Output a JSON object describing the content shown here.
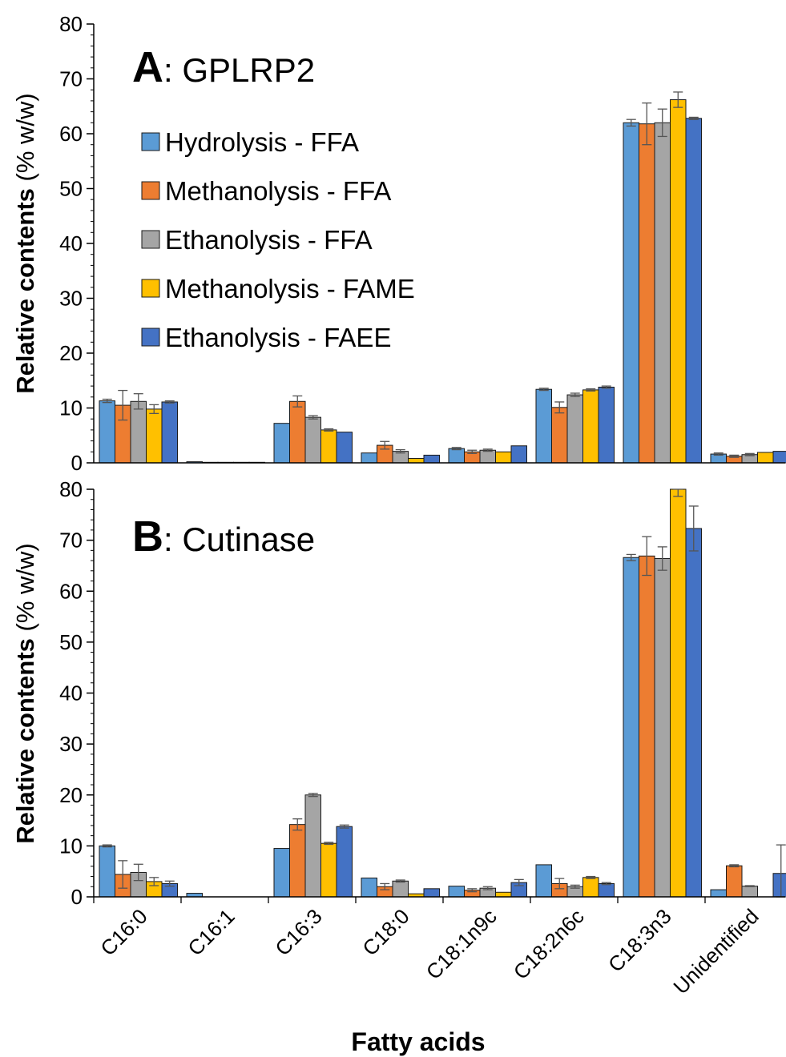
{
  "chart_data": {
    "type": "bar",
    "x_title": "Fatty acids",
    "y_title_bold": "Relative contents",
    "y_title_rest": "(% w/w)",
    "categories": [
      "C16:0",
      "C16:1",
      "C16:3",
      "C18:0",
      "C18:1n9c",
      "C18:2n6c",
      "C18:3n3",
      "Unidentified"
    ],
    "ylim": [
      0,
      80
    ],
    "yticks": [
      0,
      10,
      20,
      30,
      40,
      50,
      60,
      70,
      80
    ],
    "legend": {
      "placement": "top-left (panel A)"
    },
    "series": [
      {
        "name": "Hydrolysis - FFA",
        "color": "#5B9BD5"
      },
      {
        "name": "Methanolysis - FFA",
        "color": "#ED7D31"
      },
      {
        "name": "Ethanolysis - FFA",
        "color": "#A5A5A5"
      },
      {
        "name": "Methanolysis - FAME",
        "color": "#FFC000"
      },
      {
        "name": "Ethanolysis - FAEE",
        "color": "#4472C4"
      }
    ],
    "panels": [
      {
        "letter": "A",
        "title": ": GPLRP2",
        "values": [
          [
            11.3,
            0.2,
            7.2,
            1.8,
            2.6,
            13.4,
            62.0,
            1.6
          ],
          [
            10.5,
            0.1,
            11.2,
            3.2,
            2.0,
            10.1,
            61.8,
            1.2
          ],
          [
            11.2,
            0.1,
            8.3,
            2.1,
            2.3,
            12.4,
            62.0,
            1.5
          ],
          [
            9.8,
            0.1,
            6.0,
            0.8,
            2.0,
            13.3,
            66.2,
            1.9
          ],
          [
            11.1,
            0.1,
            5.6,
            1.4,
            3.1,
            13.8,
            62.8,
            2.1
          ]
        ],
        "errors": [
          [
            0.3,
            0,
            0,
            0,
            0.2,
            0.2,
            0.6,
            0.2
          ],
          [
            2.7,
            0,
            1.0,
            0.7,
            0.3,
            1.0,
            3.8,
            0.2
          ],
          [
            1.4,
            0,
            0.3,
            0.3,
            0.2,
            0.3,
            2.5,
            0.2
          ],
          [
            0.8,
            0,
            0.2,
            0,
            0,
            0.2,
            1.4,
            0
          ],
          [
            0.2,
            0,
            0,
            0,
            0,
            0.2,
            0.2,
            0
          ]
        ]
      },
      {
        "letter": "B",
        "title": ": Cutinase",
        "values": [
          [
            10.0,
            0.7,
            9.5,
            3.7,
            2.1,
            6.3,
            66.6,
            1.4
          ],
          [
            4.4,
            0,
            14.2,
            2.0,
            1.3,
            2.6,
            66.9,
            6.1
          ],
          [
            4.8,
            0,
            20.0,
            3.1,
            1.7,
            2.0,
            66.4,
            2.1
          ],
          [
            3.0,
            0,
            10.5,
            0.6,
            0.9,
            3.8,
            80.0,
            0
          ],
          [
            2.6,
            0,
            13.8,
            1.6,
            2.8,
            2.6,
            72.3,
            4.6
          ]
        ],
        "errors": [
          [
            0.2,
            0,
            0,
            0,
            0,
            0,
            0.6,
            0
          ],
          [
            2.7,
            0,
            1.1,
            0.6,
            0.3,
            1.0,
            3.8,
            0.2
          ],
          [
            1.6,
            0,
            0.3,
            0.2,
            0.3,
            0.3,
            2.3,
            0.1
          ],
          [
            0.8,
            0,
            0.2,
            0,
            0,
            0.2,
            1.4,
            0
          ],
          [
            0.5,
            0,
            0.3,
            0,
            0.6,
            0.2,
            4.4,
            5.6
          ]
        ]
      }
    ]
  }
}
